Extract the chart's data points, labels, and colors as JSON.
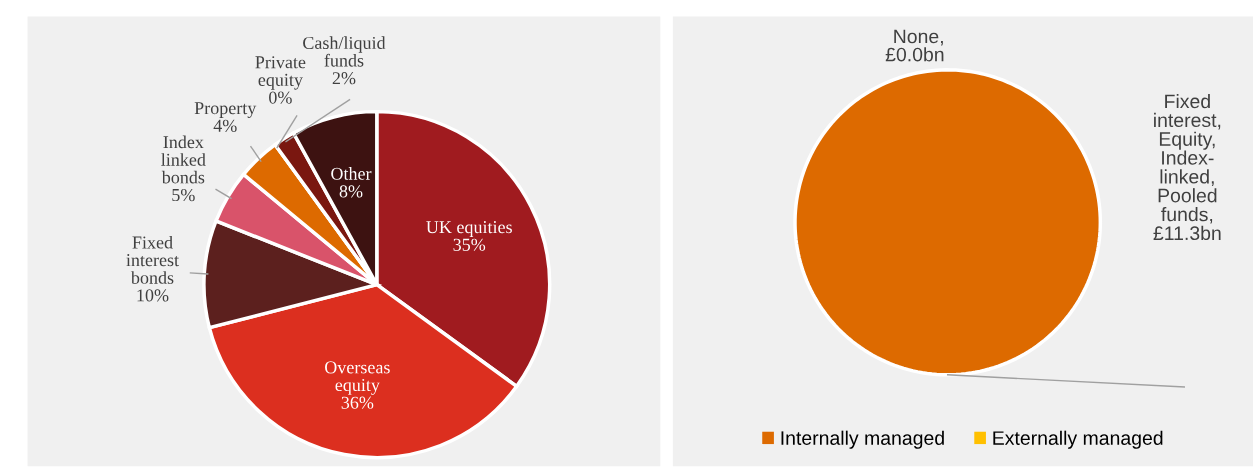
{
  "chart_data": [
    {
      "type": "pie",
      "categories": [
        "UK equities",
        "Overseas\nequity",
        "Fixed\ninterest\nbonds",
        "Index\nlinked\nbonds",
        "Property",
        "Private\nequity",
        "Cash/liquid\nfunds",
        "Other"
      ],
      "values": [
        35,
        36,
        10,
        5,
        4,
        0,
        2,
        8
      ],
      "colors": [
        "#a01b1f",
        "#dc2f1f",
        "#5c201e",
        "#d9536a",
        "#dd6a00",
        "#8b1a12",
        "#7a1710",
        "#3d1211"
      ],
      "value_labels": [
        "35%",
        "36%",
        "10%",
        "5%",
        "4%",
        "0%",
        "2%",
        "8%"
      ]
    },
    {
      "type": "pie",
      "categories": [
        "Internally managed",
        "Externally managed"
      ],
      "values": [
        11.3,
        0.0
      ],
      "colors": [
        "#dd6a00",
        "#ffc000"
      ],
      "value_labels": [
        "Fixed\ninterest,\nEquity,\nIndex-\nlinked,\nPooled\nfunds,\n£11.3bn",
        "None,\n£0.0bn"
      ],
      "legend": "bottom"
    }
  ]
}
